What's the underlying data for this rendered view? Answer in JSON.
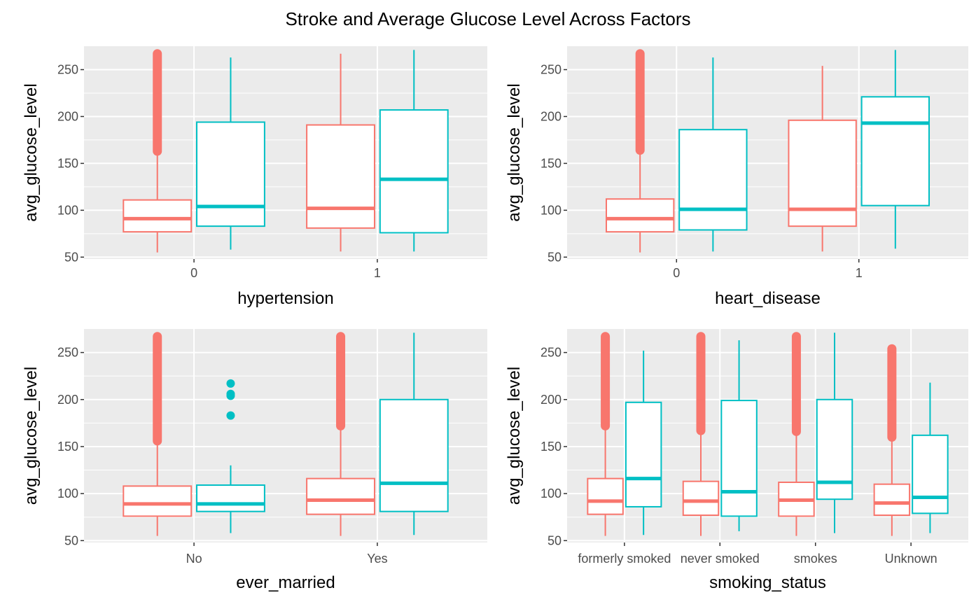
{
  "title": "Stroke and Average Glucose Level Across Factors",
  "colors": {
    "panel_bg": "#EBEBEB",
    "grid": "#FFFFFF",
    "stroke_0": "#F8766D",
    "stroke_1": "#00BFC4",
    "tick_text": "#4D4D4D",
    "axis_text": "#000000"
  },
  "chart_data": [
    {
      "type": "box",
      "xlabel": "hypertension",
      "ylabel": "avg_glucose_level",
      "ylim": [
        48,
        275
      ],
      "yticks": [
        50,
        100,
        150,
        200,
        250
      ],
      "categories": [
        "0",
        "1"
      ],
      "boxes": [
        {
          "category": "0",
          "group": "0",
          "whisker_low": 55,
          "q1": 77,
          "median": 91,
          "q3": 111,
          "whisker_high": 163,
          "outliers_range": [
            163,
            267
          ]
        },
        {
          "category": "0",
          "group": "1",
          "whisker_low": 58,
          "q1": 83,
          "median": 104,
          "q3": 194,
          "whisker_high": 263,
          "outliers_range": []
        },
        {
          "category": "1",
          "group": "0",
          "whisker_low": 56,
          "q1": 81,
          "median": 102,
          "q3": 191,
          "whisker_high": 267,
          "outliers_range": []
        },
        {
          "category": "1",
          "group": "1",
          "whisker_low": 56,
          "q1": 76,
          "median": 133,
          "q3": 207,
          "whisker_high": 271,
          "outliers_range": []
        }
      ]
    },
    {
      "type": "box",
      "xlabel": "heart_disease",
      "ylabel": "avg_glucose_level",
      "ylim": [
        48,
        275
      ],
      "yticks": [
        50,
        100,
        150,
        200,
        250
      ],
      "categories": [
        "0",
        "1"
      ],
      "boxes": [
        {
          "category": "0",
          "group": "0",
          "whisker_low": 55,
          "q1": 77,
          "median": 91,
          "q3": 112,
          "whisker_high": 164,
          "outliers_range": [
            164,
            267
          ]
        },
        {
          "category": "0",
          "group": "1",
          "whisker_low": 56,
          "q1": 79,
          "median": 101,
          "q3": 186,
          "whisker_high": 263,
          "outliers_range": []
        },
        {
          "category": "1",
          "group": "0",
          "whisker_low": 56,
          "q1": 83,
          "median": 101,
          "q3": 196,
          "whisker_high": 254,
          "outliers_range": []
        },
        {
          "category": "1",
          "group": "1",
          "whisker_low": 59,
          "q1": 105,
          "median": 193,
          "q3": 221,
          "whisker_high": 271,
          "outliers_range": []
        }
      ]
    },
    {
      "type": "box",
      "xlabel": "ever_married",
      "ylabel": "avg_glucose_level",
      "ylim": [
        48,
        275
      ],
      "yticks": [
        50,
        100,
        150,
        200,
        250
      ],
      "categories": [
        "No",
        "Yes"
      ],
      "boxes": [
        {
          "category": "No",
          "group": "0",
          "whisker_low": 55,
          "q1": 76,
          "median": 89,
          "q3": 108,
          "whisker_high": 156,
          "outliers_range": [
            156,
            267
          ]
        },
        {
          "category": "No",
          "group": "1",
          "whisker_low": 58,
          "q1": 81,
          "median": 89,
          "q3": 109,
          "whisker_high": 130,
          "outliers": [
            183,
            204,
            206,
            217
          ]
        },
        {
          "category": "Yes",
          "group": "0",
          "whisker_low": 55,
          "q1": 78,
          "median": 93,
          "q3": 116,
          "whisker_high": 172,
          "outliers_range": [
            172,
            267
          ]
        },
        {
          "category": "Yes",
          "group": "1",
          "whisker_low": 56,
          "q1": 81,
          "median": 111,
          "q3": 200,
          "whisker_high": 271,
          "outliers_range": []
        }
      ]
    },
    {
      "type": "box",
      "xlabel": "smoking_status",
      "ylabel": "avg_glucose_level",
      "ylim": [
        48,
        275
      ],
      "yticks": [
        50,
        100,
        150,
        200,
        250
      ],
      "categories": [
        "formerly smoked",
        "never smoked",
        "smokes",
        "Unknown"
      ],
      "boxes": [
        {
          "category": "formerly smoked",
          "group": "0",
          "whisker_low": 55,
          "q1": 78,
          "median": 92,
          "q3": 116,
          "whisker_high": 172,
          "outliers_range": [
            172,
            267
          ]
        },
        {
          "category": "formerly smoked",
          "group": "1",
          "whisker_low": 56,
          "q1": 86,
          "median": 116,
          "q3": 197,
          "whisker_high": 252,
          "outliers_range": []
        },
        {
          "category": "never smoked",
          "group": "0",
          "whisker_low": 55,
          "q1": 77,
          "median": 92,
          "q3": 113,
          "whisker_high": 167,
          "outliers_range": [
            167,
            267
          ]
        },
        {
          "category": "never smoked",
          "group": "1",
          "whisker_low": 60,
          "q1": 76,
          "median": 102,
          "q3": 199,
          "whisker_high": 263,
          "outliers_range": []
        },
        {
          "category": "smokes",
          "group": "0",
          "whisker_low": 55,
          "q1": 76,
          "median": 93,
          "q3": 112,
          "whisker_high": 166,
          "outliers_range": [
            166,
            267
          ]
        },
        {
          "category": "smokes",
          "group": "1",
          "whisker_low": 58,
          "q1": 94,
          "median": 112,
          "q3": 200,
          "whisker_high": 271,
          "outliers_range": []
        },
        {
          "category": "Unknown",
          "group": "0",
          "whisker_low": 55,
          "q1": 77,
          "median": 90,
          "q3": 110,
          "whisker_high": 160,
          "outliers_range": [
            160,
            254
          ]
        },
        {
          "category": "Unknown",
          "group": "1",
          "whisker_low": 58,
          "q1": 79,
          "median": 96,
          "q3": 162,
          "whisker_high": 218,
          "outliers_range": []
        }
      ]
    }
  ]
}
